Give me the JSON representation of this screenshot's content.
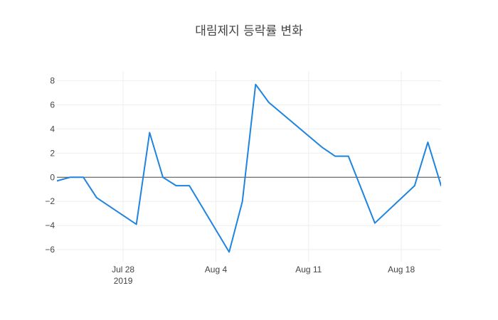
{
  "chart_data": {
    "type": "line",
    "title": "대림제지 등락률 변화",
    "xlabel": "",
    "ylabel": "",
    "x": [
      "2019-07-23",
      "2019-07-24",
      "2019-07-25",
      "2019-07-26",
      "2019-07-29",
      "2019-07-30",
      "2019-07-31",
      "2019-08-01",
      "2019-08-02",
      "2019-08-05",
      "2019-08-06",
      "2019-08-07",
      "2019-08-08",
      "2019-08-12",
      "2019-08-13",
      "2019-08-14",
      "2019-08-16",
      "2019-08-19",
      "2019-08-20",
      "2019-08-21",
      "2019-08-22"
    ],
    "series": [
      {
        "values": [
          -0.3,
          0.0,
          0.0,
          -1.7,
          -3.9,
          3.7,
          0.0,
          -0.7,
          -0.7,
          -6.2,
          -2.0,
          7.7,
          6.2,
          2.5,
          1.75,
          1.75,
          -3.8,
          -0.7,
          2.9,
          -0.7,
          -0.2
        ]
      }
    ],
    "xlim": [
      "2019-07-23",
      "2019-08-21"
    ],
    "ylim": [
      -7,
      8.8
    ],
    "x_ticks": [
      {
        "date": "2019-07-28",
        "label": "Jul 28",
        "sublabel": "2019"
      },
      {
        "date": "2019-08-04",
        "label": "Aug 4",
        "sublabel": ""
      },
      {
        "date": "2019-08-11",
        "label": "Aug 11",
        "sublabel": ""
      },
      {
        "date": "2019-08-18",
        "label": "Aug 18",
        "sublabel": ""
      }
    ],
    "y_ticks": [
      8,
      6,
      4,
      2,
      0,
      -2,
      -4,
      -6
    ],
    "y_tick_labels": [
      "8",
      "6",
      "4",
      "2",
      "0",
      "−2",
      "−4",
      "−6"
    ],
    "grid": true,
    "zero_line": true,
    "colors": {
      "line": "#1f84e0",
      "grid": "#eeeeee",
      "zero": "#444444",
      "text": "#444444"
    }
  }
}
